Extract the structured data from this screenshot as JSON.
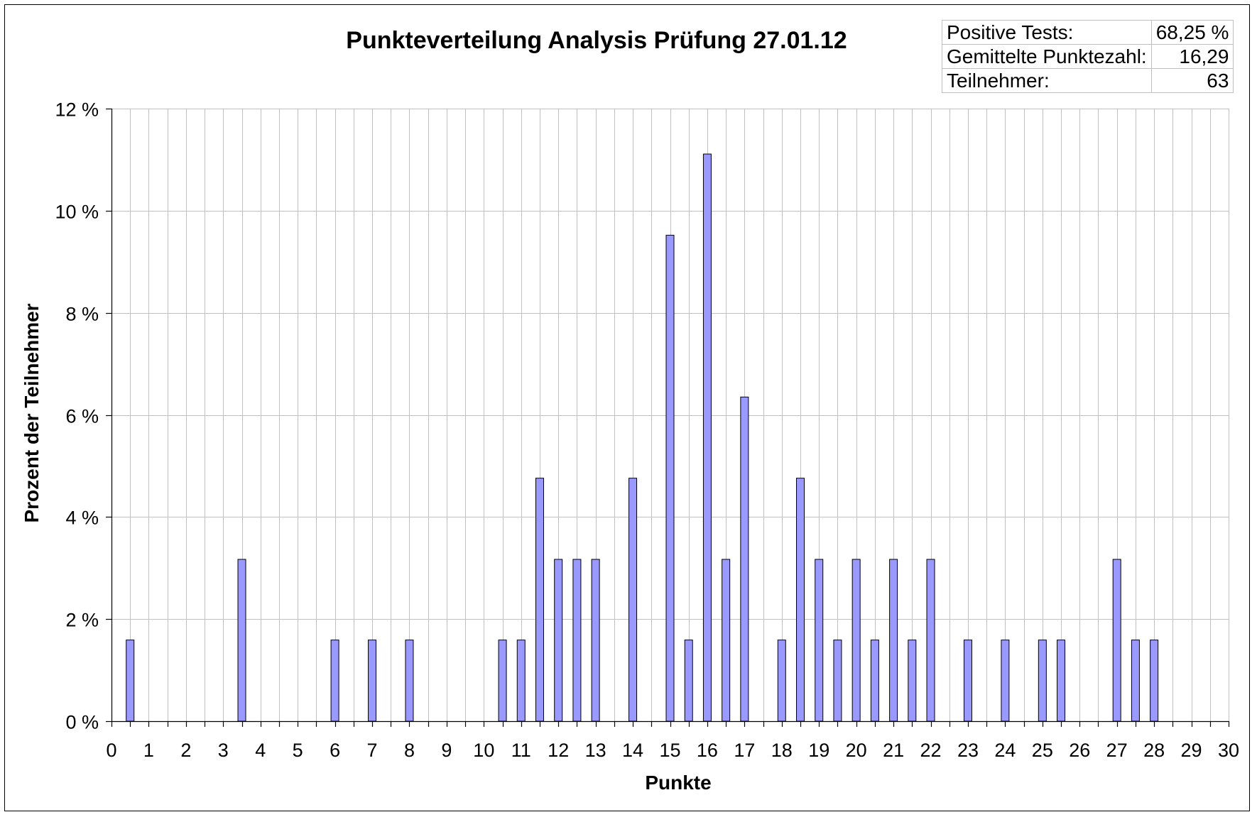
{
  "chart_data": {
    "type": "bar",
    "title": "Punkteverteilung Analysis Prüfung 27.01.12",
    "xlabel": "Punkte",
    "ylabel": "Prozent der Teilnehmer",
    "xlim": [
      0,
      30
    ],
    "ylim": [
      0,
      12
    ],
    "y_tick_step": 2,
    "y_unit_suffix": " %",
    "grid": true,
    "bar_color": "#9999ff",
    "x_ticks": [
      "0",
      "1",
      "2",
      "3",
      "4",
      "5",
      "6",
      "7",
      "8",
      "9",
      "10",
      "11",
      "12",
      "13",
      "14",
      "15",
      "16",
      "17",
      "18",
      "19",
      "20",
      "21",
      "22",
      "23",
      "24",
      "25",
      "26",
      "27",
      "28",
      "29",
      "30"
    ],
    "y_ticks": [
      "0 %",
      "2 %",
      "4 %",
      "6 %",
      "8 %",
      "10 %",
      "12 %"
    ],
    "points": [
      {
        "x": 0.5,
        "y": 1.59
      },
      {
        "x": 3.5,
        "y": 3.17
      },
      {
        "x": 6.0,
        "y": 1.59
      },
      {
        "x": 7.0,
        "y": 1.59
      },
      {
        "x": 8.0,
        "y": 1.59
      },
      {
        "x": 10.5,
        "y": 1.59
      },
      {
        "x": 11.0,
        "y": 1.59
      },
      {
        "x": 11.5,
        "y": 4.76
      },
      {
        "x": 12.0,
        "y": 3.17
      },
      {
        "x": 12.5,
        "y": 3.17
      },
      {
        "x": 13.0,
        "y": 3.17
      },
      {
        "x": 14.0,
        "y": 4.76
      },
      {
        "x": 15.0,
        "y": 9.52
      },
      {
        "x": 15.5,
        "y": 1.59
      },
      {
        "x": 16.0,
        "y": 11.11
      },
      {
        "x": 16.5,
        "y": 3.17
      },
      {
        "x": 17.0,
        "y": 6.35
      },
      {
        "x": 18.0,
        "y": 1.59
      },
      {
        "x": 18.5,
        "y": 4.76
      },
      {
        "x": 19.0,
        "y": 3.17
      },
      {
        "x": 19.5,
        "y": 1.59
      },
      {
        "x": 20.0,
        "y": 3.17
      },
      {
        "x": 20.5,
        "y": 1.59
      },
      {
        "x": 21.0,
        "y": 3.17
      },
      {
        "x": 21.5,
        "y": 1.59
      },
      {
        "x": 22.0,
        "y": 3.17
      },
      {
        "x": 23.0,
        "y": 1.59
      },
      {
        "x": 24.0,
        "y": 1.59
      },
      {
        "x": 25.0,
        "y": 1.59
      },
      {
        "x": 25.5,
        "y": 1.59
      },
      {
        "x": 27.0,
        "y": 3.17
      },
      {
        "x": 27.5,
        "y": 1.59
      },
      {
        "x": 28.0,
        "y": 1.59
      }
    ]
  },
  "stats": [
    {
      "label": "Positive Tests:",
      "value": "68,25 %"
    },
    {
      "label": "Gemittelte Punktezahl:",
      "value": "16,29"
    },
    {
      "label": "Teilnehmer:",
      "value": "63"
    }
  ]
}
